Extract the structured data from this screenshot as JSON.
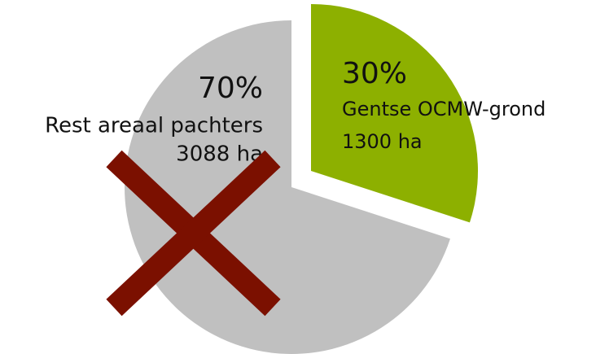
{
  "chart_data": {
    "type": "pie",
    "categories": [
      "Gentse OCMW-grond",
      "Rest areaal pachters"
    ],
    "values": [
      30,
      70
    ],
    "value_labels": [
      "30%",
      "70%"
    ],
    "area_labels": [
      "1300 ha",
      "3088 ha"
    ],
    "colors": [
      "#8db000",
      "#c0c0c0"
    ]
  }
}
